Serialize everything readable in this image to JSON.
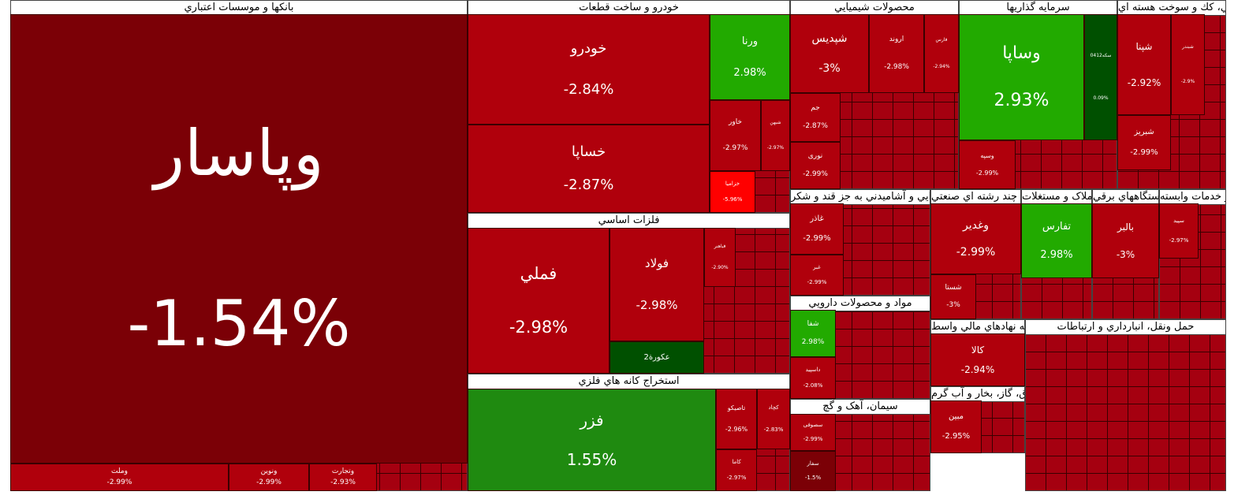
{
  "sectors": [
    {
      "title": "بانکها و موسسات اعتباري",
      "tiles": [
        {
          "name": "وپاسار",
          "change": "-1.54%",
          "color": "#7b0006"
        },
        {
          "name": "وملت",
          "change": "-2.99%",
          "color": "#b0000c"
        },
        {
          "name": "ونوین",
          "change": "-2.99%",
          "color": "#b0000c"
        },
        {
          "name": "وتجارت",
          "change": "-2.93%",
          "color": "#b0000c"
        }
      ]
    },
    {
      "title": "خودرو و ساخت قطعات",
      "tiles": [
        {
          "name": "خودرو",
          "change": "-2.84%",
          "color": "#b0000c"
        },
        {
          "name": "خساپا",
          "change": "-2.87%",
          "color": "#b0000c"
        },
        {
          "name": "ورنا",
          "change": "2.98%",
          "color": "#22aa00"
        },
        {
          "name": "خاور",
          "change": "-2.97%",
          "color": "#b0000c"
        },
        {
          "name": "شبهن",
          "change": "-2.97%",
          "color": "#b0000c"
        },
        {
          "name": "خزامیا",
          "change": "-5.96%",
          "color": "#ff0000"
        }
      ]
    },
    {
      "title": "فلزات اساسي",
      "tiles": [
        {
          "name": "فملي",
          "change": "-2.98%",
          "color": "#b0000c"
        },
        {
          "name": "فولاد",
          "change": "-2.98%",
          "color": "#b0000c"
        },
        {
          "name": "عکورة2",
          "color": "#005000"
        },
        {
          "name": "فباهنر",
          "change": "-2.90%",
          "color": "#b0000c"
        }
      ]
    },
    {
      "title": "استخراج کانه هاي فلزي",
      "tiles": [
        {
          "name": "فزر",
          "change": "1.55%",
          "color": "#1f8a10"
        },
        {
          "name": "تاصیکو",
          "change": "-2.96%",
          "color": "#b0000c"
        },
        {
          "name": "کچاد",
          "change": "-2.83%",
          "color": "#b0000c"
        },
        {
          "name": "کاما",
          "change": "-2.97%",
          "color": "#b0000c"
        }
      ]
    },
    {
      "title": "محصولات شيميايي",
      "tiles": [
        {
          "name": "شپدیس",
          "change": "-3%",
          "color": "#b0000c"
        },
        {
          "name": "اروند",
          "change": "-2.98%",
          "color": "#b0000c"
        },
        {
          "name": "فارس",
          "change": "-2.94%",
          "color": "#b0000c"
        },
        {
          "name": "جم",
          "change": "-2.87%",
          "color": "#b0000c"
        },
        {
          "name": "نوری",
          "change": "-2.99%",
          "color": "#b0000c"
        }
      ]
    },
    {
      "title": "سرمايه گذاريها",
      "tiles": [
        {
          "name": "وساپا",
          "change": "2.93%",
          "color": "#22aa00"
        },
        {
          "name": "سکه0412",
          "change": "0.09%",
          "color": "#005000"
        },
        {
          "name": "وسپه",
          "change": "-2.99%",
          "color": "#b0000c"
        }
      ]
    },
    {
      "title": "فرآورده هاي نفتي، كك و سوخت هسته اي",
      "tiles": [
        {
          "name": "شپنا",
          "change": "-2.92%",
          "color": "#b0000c"
        },
        {
          "name": "شبندر",
          "change": "-2.9%",
          "color": "#b0000c"
        },
        {
          "name": "شبریز",
          "change": "-2.99%",
          "color": "#b0000c"
        }
      ]
    },
    {
      "title": "محصولات غذايي و آشاميدني به جز قند و شکر",
      "tiles": [
        {
          "name": "غاذر",
          "change": "-2.99%",
          "color": "#b0000c"
        },
        {
          "name": "غبر",
          "change": "-2.99%",
          "color": "#b0000c"
        }
      ]
    },
    {
      "title": "مواد و محصولات دارويي",
      "tiles": [
        {
          "name": "شفا",
          "change": "2.98%",
          "color": "#22aa00"
        },
        {
          "name": "داسپید",
          "change": "-2.08%",
          "color": "#b0000c"
        }
      ]
    },
    {
      "title": "سيمان، آهک و گچ",
      "tiles": [
        {
          "name": "سصوفی",
          "change": "-2.99%",
          "color": "#b0000c"
        },
        {
          "name": "سفار",
          "change": "-1.5%",
          "color": "#7b0006"
        }
      ]
    },
    {
      "title": "شرکتهاي چند رشته اي صنعتي",
      "tiles": [
        {
          "name": "وغدیر",
          "change": "-2.99%",
          "color": "#b0000c"
        },
        {
          "name": "شستا",
          "change": "-3%",
          "color": "#b0000c"
        }
      ]
    },
    {
      "title": "انبوه سازی، املاک و مستغلات",
      "tiles": [
        {
          "name": "تفارس",
          "change": "2.98%",
          "color": "#22aa00"
        }
      ]
    },
    {
      "title": "ماشين آلات و دستگاههاي برقي",
      "tiles": [
        {
          "name": "بالبر",
          "change": "-3%",
          "color": "#b0000c"
        }
      ]
    },
    {
      "title": "زراعت و خدمات وابسته",
      "tiles": [
        {
          "name": "سپید",
          "change": "-2.97%",
          "color": "#b0000c"
        }
      ]
    },
    {
      "title": "فعاليتهاي كمكي به نهادهاي مالي واسط",
      "tiles": [
        {
          "name": "کالا",
          "change": "-2.94%",
          "color": "#b0000c"
        }
      ]
    },
    {
      "title": "عرضه برق، گاز، بخار و آب گرم",
      "tiles": [
        {
          "name": "مبین",
          "change": "-2.95%",
          "color": "#b0000c"
        }
      ]
    },
    {
      "title": "حمل ونقل، انبارداري و ارتباطات",
      "tiles": []
    }
  ]
}
